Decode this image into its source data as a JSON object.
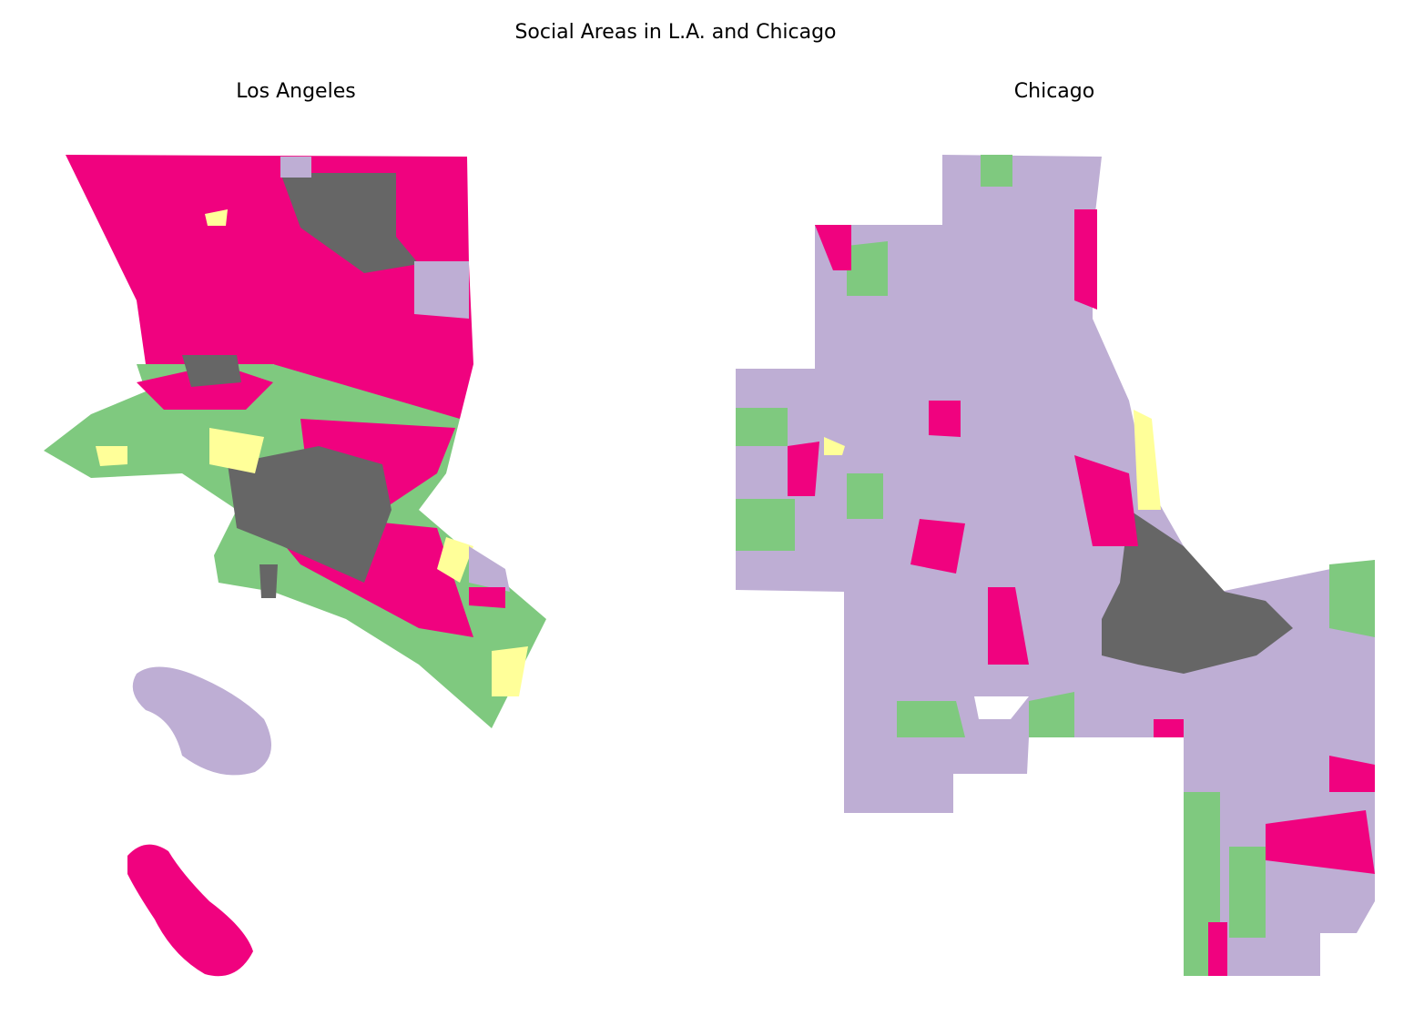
{
  "title": "Social Areas in L.A. and Chicago",
  "maps": [
    {
      "title": "Los Angeles"
    },
    {
      "title": "Chicago"
    }
  ]
}
